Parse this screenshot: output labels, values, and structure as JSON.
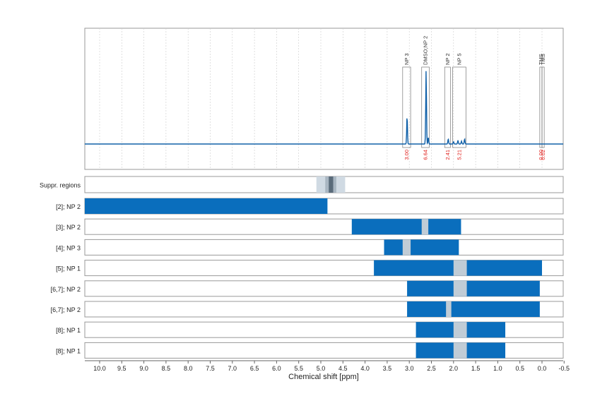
{
  "chart_data": {
    "type": "nmr-spectrum-with-region-bars",
    "xlabel": "Chemical shift [ppm]",
    "x_reversed": true,
    "xlim": [
      10.35,
      -0.5
    ],
    "xticks": [
      "10.0",
      "9.5",
      "9.0",
      "8.5",
      "8.0",
      "7.5",
      "7.0",
      "6.5",
      "6.0",
      "5.5",
      "5.0",
      "4.5",
      "4.0",
      "3.5",
      "3.0",
      "2.5",
      "2.0",
      "1.5",
      "1.0",
      "0.5",
      "0.0",
      "-0.5"
    ],
    "grid": true,
    "colors": {
      "spectrum": "#1060a8",
      "bar": "#0a6ebd",
      "suppressed_overlay": "#c0ccd6",
      "suppressed_light": "#d0dae3",
      "suppressed_dark": "#5a6b7a",
      "integral_text": "#e0201c",
      "axis": "#999999",
      "grid": "#cccccc"
    },
    "spectrum": {
      "baseline": 0,
      "peaks": [
        {
          "ppm": 3.05,
          "height": 0.38
        },
        {
          "ppm": 2.62,
          "height": 1.0
        },
        {
          "ppm": 2.57,
          "height": 0.09
        },
        {
          "ppm": 2.12,
          "height": 0.07
        },
        {
          "ppm": 2.0,
          "height": 0.03
        },
        {
          "ppm": 1.9,
          "height": 0.05
        },
        {
          "ppm": 1.82,
          "height": 0.04
        },
        {
          "ppm": 1.75,
          "height": 0.07
        }
      ]
    },
    "annotations": [
      {
        "label": "NP 3",
        "from": 3.15,
        "to": 2.97,
        "integral": "3.00",
        "box_top": 0.28
      },
      {
        "label": "DMSO;NP 2",
        "from": 2.72,
        "to": 2.55,
        "integral": "6.64",
        "box_top": 0.28
      },
      {
        "label": "NP 2",
        "from": 2.2,
        "to": 2.07,
        "integral": "2.41",
        "box_top": 0.28
      },
      {
        "label": "NP 5",
        "from": 2.02,
        "to": 1.72,
        "integral": "5.21",
        "box_top": 0.28
      },
      {
        "label": "TMS",
        "from": 0.05,
        "to": 0.0,
        "integral": "0.00",
        "box_top": 0.28
      },
      {
        "label": "TMS",
        "from": -0.0,
        "to": -0.05,
        "integral": "0.02",
        "box_top": 0.28
      }
    ],
    "suppressed_regions": {
      "label": "Suppr. regions",
      "outer": [
        5.1,
        4.45
      ],
      "middle": [
        4.9,
        4.65
      ],
      "inner": [
        4.82,
        4.72
      ]
    },
    "rows": [
      {
        "label": "[2]; NP 2",
        "bar": [
          10.35,
          4.85
        ],
        "gaps": []
      },
      {
        "label": "[3]; NP 2",
        "bar": [
          4.3,
          1.83
        ],
        "gaps": [
          [
            2.72,
            2.57
          ]
        ]
      },
      {
        "label": "[4]; NP 3",
        "bar": [
          3.57,
          1.88
        ],
        "gaps": [
          [
            3.15,
            2.97
          ]
        ]
      },
      {
        "label": "[5]; NP 1",
        "bar": [
          3.8,
          0.0
        ],
        "gaps": [
          [
            2.0,
            1.7
          ]
        ]
      },
      {
        "label": "[6,7]; NP 2",
        "bar": [
          3.05,
          0.05
        ],
        "gaps": [
          [
            2.0,
            1.7
          ]
        ]
      },
      {
        "label": "[6,7]; NP 2",
        "bar": [
          3.05,
          0.05
        ],
        "gaps": [
          [
            2.17,
            2.05
          ]
        ]
      },
      {
        "label": "[8]; NP 1",
        "bar": [
          2.85,
          0.83
        ],
        "gaps": [
          [
            2.0,
            1.7
          ]
        ]
      },
      {
        "label": "[8]; NP 1",
        "bar": [
          2.85,
          0.83
        ],
        "gaps": [
          [
            2.0,
            1.7
          ]
        ]
      }
    ]
  }
}
